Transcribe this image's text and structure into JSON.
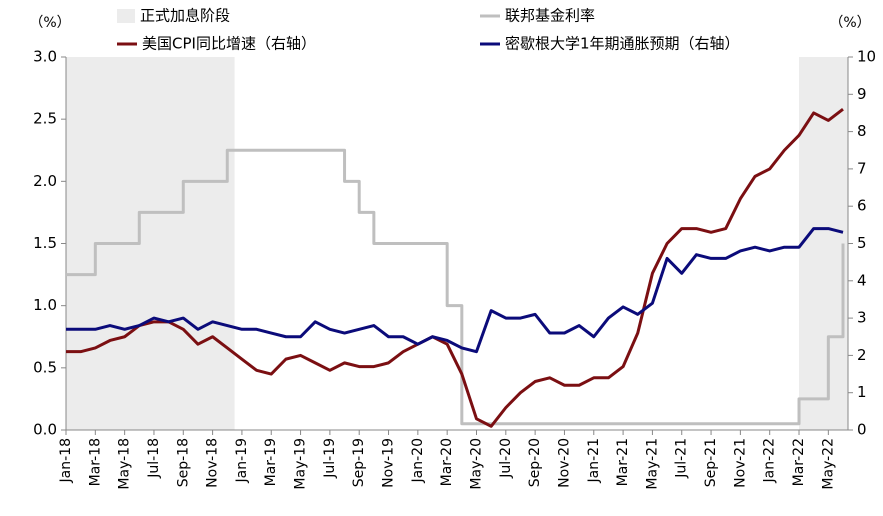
{
  "chart_data": {
    "type": "line",
    "y_label": "（%）",
    "y2_label": "（%）",
    "categories": [
      "Jan-18",
      null,
      "Mar-18",
      null,
      "May-18",
      null,
      "Jul-18",
      null,
      "Sep-18",
      null,
      "Nov-18",
      null,
      "Jan-19",
      null,
      "Mar-19",
      null,
      "May-19",
      null,
      "Jul-19",
      null,
      "Sep-19",
      null,
      "Nov-19",
      null,
      "Jan-20",
      null,
      "Mar-20",
      null,
      "May-20",
      null,
      "Jul-20",
      null,
      "Sep-20",
      null,
      "Nov-20",
      null,
      "Jan-21",
      null,
      "Mar-21",
      null,
      "May-21",
      null,
      "Jul-21",
      null,
      "Sep-21",
      null,
      "Nov-21",
      null,
      "Jan-22",
      null,
      "Mar-22",
      null,
      "May-22",
      null
    ],
    "hike_period": {
      "name": "正式加息阶段",
      "color": "#ececec",
      "ranges": [
        [
          0,
          11
        ],
        [
          50,
          53
        ]
      ]
    },
    "series": [
      {
        "name": "联邦基金利率",
        "color": "#bfbfbf",
        "step": true,
        "values": [
          1.25,
          1.25,
          1.5,
          1.5,
          1.5,
          1.75,
          1.75,
          1.75,
          2.0,
          2.0,
          2.0,
          2.25,
          2.25,
          2.25,
          2.25,
          2.25,
          2.25,
          2.25,
          2.25,
          2.0,
          1.75,
          1.5,
          1.5,
          1.5,
          1.5,
          1.5,
          1.0,
          0.05,
          0.05,
          0.05,
          0.05,
          0.05,
          0.05,
          0.05,
          0.05,
          0.05,
          0.05,
          0.05,
          0.05,
          0.05,
          0.05,
          0.05,
          0.05,
          0.05,
          0.05,
          0.05,
          0.05,
          0.05,
          0.05,
          0.05,
          0.25,
          0.25,
          0.75,
          1.5
        ]
      },
      {
        "name": "美国CPI同比增速（右轴）",
        "color": "#7b0f12",
        "axis": "y2",
        "values": [
          2.1,
          2.1,
          2.2,
          2.4,
          2.5,
          2.8,
          2.9,
          2.9,
          2.7,
          2.3,
          2.5,
          2.2,
          1.9,
          1.6,
          1.5,
          1.9,
          2.0,
          1.8,
          1.6,
          1.8,
          1.7,
          1.7,
          1.8,
          2.1,
          2.3,
          2.5,
          2.3,
          1.5,
          0.3,
          0.1,
          0.6,
          1.0,
          1.3,
          1.4,
          1.2,
          1.2,
          1.4,
          1.4,
          1.7,
          2.6,
          4.2,
          5.0,
          5.4,
          5.4,
          5.3,
          5.4,
          6.2,
          6.8,
          7.0,
          7.5,
          7.9,
          8.5,
          8.3,
          8.6
        ]
      },
      {
        "name": "密歇根大学1年期通胀预期（右轴）",
        "color": "#0b0b7a",
        "axis": "y2",
        "values": [
          2.7,
          2.7,
          2.7,
          2.8,
          2.7,
          2.8,
          3.0,
          2.9,
          3.0,
          2.7,
          2.9,
          2.8,
          2.7,
          2.7,
          2.6,
          2.5,
          2.5,
          2.9,
          2.7,
          2.6,
          2.7,
          2.8,
          2.5,
          2.5,
          2.3,
          2.5,
          2.4,
          2.2,
          2.1,
          3.2,
          3.0,
          3.0,
          3.1,
          2.6,
          2.6,
          2.8,
          2.5,
          3.0,
          3.3,
          3.1,
          3.4,
          4.6,
          4.2,
          4.7,
          4.6,
          4.6,
          4.8,
          4.9,
          4.8,
          4.9,
          4.9,
          5.4,
          5.4,
          5.3
        ]
      }
    ],
    "ylim": [
      0,
      3
    ],
    "yticks": [
      {
        "value": 0,
        "label": "0.0"
      },
      {
        "value": 0.5,
        "label": "0.5"
      },
      {
        "value": 1,
        "label": "1.0"
      },
      {
        "value": 1.5,
        "label": "1.5"
      },
      {
        "value": 2,
        "label": "2.0"
      },
      {
        "value": 2.5,
        "label": "2.5"
      },
      {
        "value": 3,
        "label": "3.0"
      }
    ],
    "y2lim": [
      0,
      10
    ],
    "y2ticks": [
      0,
      1,
      2,
      3,
      4,
      5,
      6,
      7,
      8,
      9,
      10
    ],
    "grid": false
  }
}
